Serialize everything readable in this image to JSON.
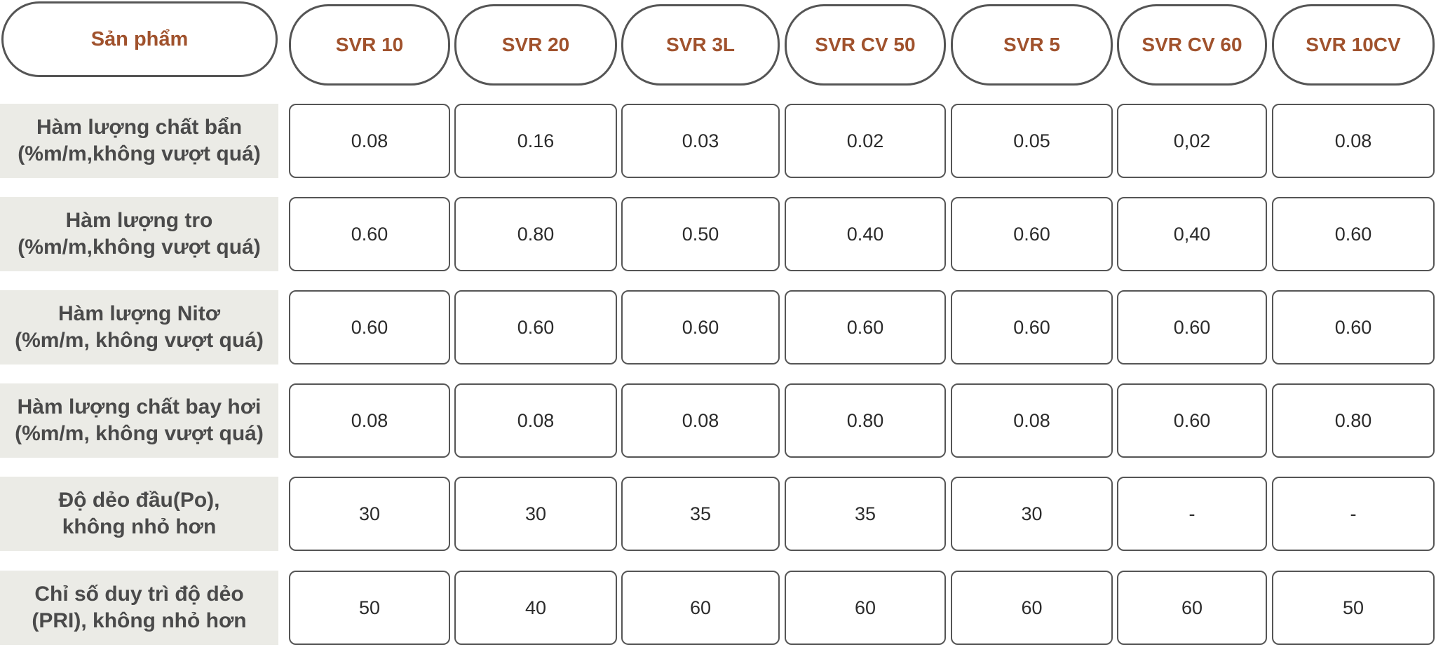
{
  "table": {
    "corner_label": "Sản phẩm",
    "columns": [
      "SVR 10",
      "SVR 20",
      "SVR 3L",
      "SVR CV 50",
      "SVR 5",
      "SVR CV 60",
      "SVR 10CV"
    ],
    "rows": [
      {
        "label_line1": "Hàm lượng chất bẩn",
        "label_line2": "(%m/m,không vượt quá)",
        "values": [
          "0.08",
          "0.16",
          "0.03",
          "0.02",
          "0.05",
          "0,02",
          "0.08"
        ]
      },
      {
        "label_line1": "Hàm lượng tro",
        "label_line2": "(%m/m,không vượt quá)",
        "values": [
          "0.60",
          "0.80",
          "0.50",
          "0.40",
          "0.60",
          "0,40",
          "0.60"
        ]
      },
      {
        "label_line1": "Hàm lượng Nitơ",
        "label_line2": "(%m/m, không vượt quá)",
        "values": [
          "0.60",
          "0.60",
          "0.60",
          "0.60",
          "0.60",
          "0.60",
          "0.60"
        ]
      },
      {
        "label_line1": "Hàm lượng chất bay hơi",
        "label_line2": "(%m/m, không vượt quá)",
        "values": [
          "0.08",
          "0.08",
          "0.08",
          "0.80",
          "0.08",
          "0.60",
          "0.80"
        ]
      },
      {
        "label_line1": "Độ dẻo đầu(Po),",
        "label_line2": "không nhỏ hơn",
        "values": [
          "30",
          "30",
          "35",
          "35",
          "30",
          "-",
          "-"
        ]
      },
      {
        "label_line1": "Chỉ số duy trì độ dẻo",
        "label_line2": "(PRI), không nhỏ hơn",
        "values": [
          "50",
          "40",
          "60",
          "60",
          "60",
          "60",
          "50"
        ]
      }
    ]
  },
  "colors": {
    "header_text": "#a0522d",
    "label_background": "#ebebe6",
    "border": "#555555"
  }
}
